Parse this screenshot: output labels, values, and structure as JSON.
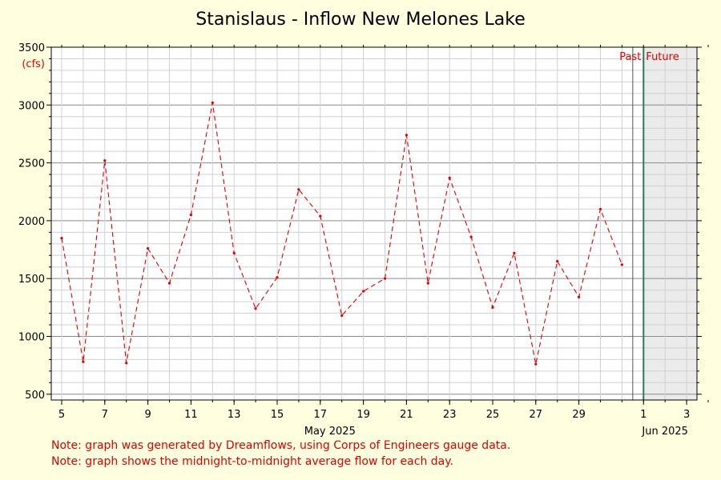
{
  "chart_data": {
    "type": "line",
    "title": "Stanislaus - Inflow New Melones Lake",
    "ylabel": "(cfs)",
    "xlabel": "",
    "month_labels": [
      "May 2025",
      "Jun 2025"
    ],
    "ylim": [
      450,
      3500
    ],
    "y_ticks": [
      500,
      1000,
      1500,
      2000,
      2500,
      3000,
      3500
    ],
    "x_tick_labels": [
      "5",
      "7",
      "9",
      "11",
      "13",
      "15",
      "17",
      "19",
      "21",
      "23",
      "25",
      "27",
      "29",
      "1",
      "3"
    ],
    "x_range": [
      "2025-05-05",
      "2025-06-04"
    ],
    "grid": true,
    "past_label": "Past",
    "future_label": "Future",
    "now_marker": "2025-06-01",
    "series": [
      {
        "color": "#e00000",
        "x": [
          "2025-05-05",
          "2025-05-06",
          "2025-05-07",
          "2025-05-08",
          "2025-05-09",
          "2025-05-10",
          "2025-05-11",
          "2025-05-12",
          "2025-05-13",
          "2025-05-14",
          "2025-05-15",
          "2025-05-16",
          "2025-05-17",
          "2025-05-18",
          "2025-05-19",
          "2025-05-20",
          "2025-05-21",
          "2025-05-22",
          "2025-05-23",
          "2025-05-24",
          "2025-05-25",
          "2025-05-26",
          "2025-05-27",
          "2025-05-28",
          "2025-05-29",
          "2025-05-30",
          "2025-05-31"
        ],
        "values": [
          1850,
          780,
          2520,
          770,
          1760,
          1460,
          2050,
          3020,
          1720,
          1240,
          1510,
          2270,
          2040,
          1180,
          1390,
          1500,
          2740,
          1460,
          2370,
          1860,
          1250,
          1720,
          760,
          1650,
          1340,
          2100,
          1620
        ]
      }
    ]
  },
  "notes": [
    "Note: graph was generated by Dreamflows, using Corps of Engineers gauge data.",
    "Note: graph shows the midnight-to-midnight average flow for each day."
  ]
}
